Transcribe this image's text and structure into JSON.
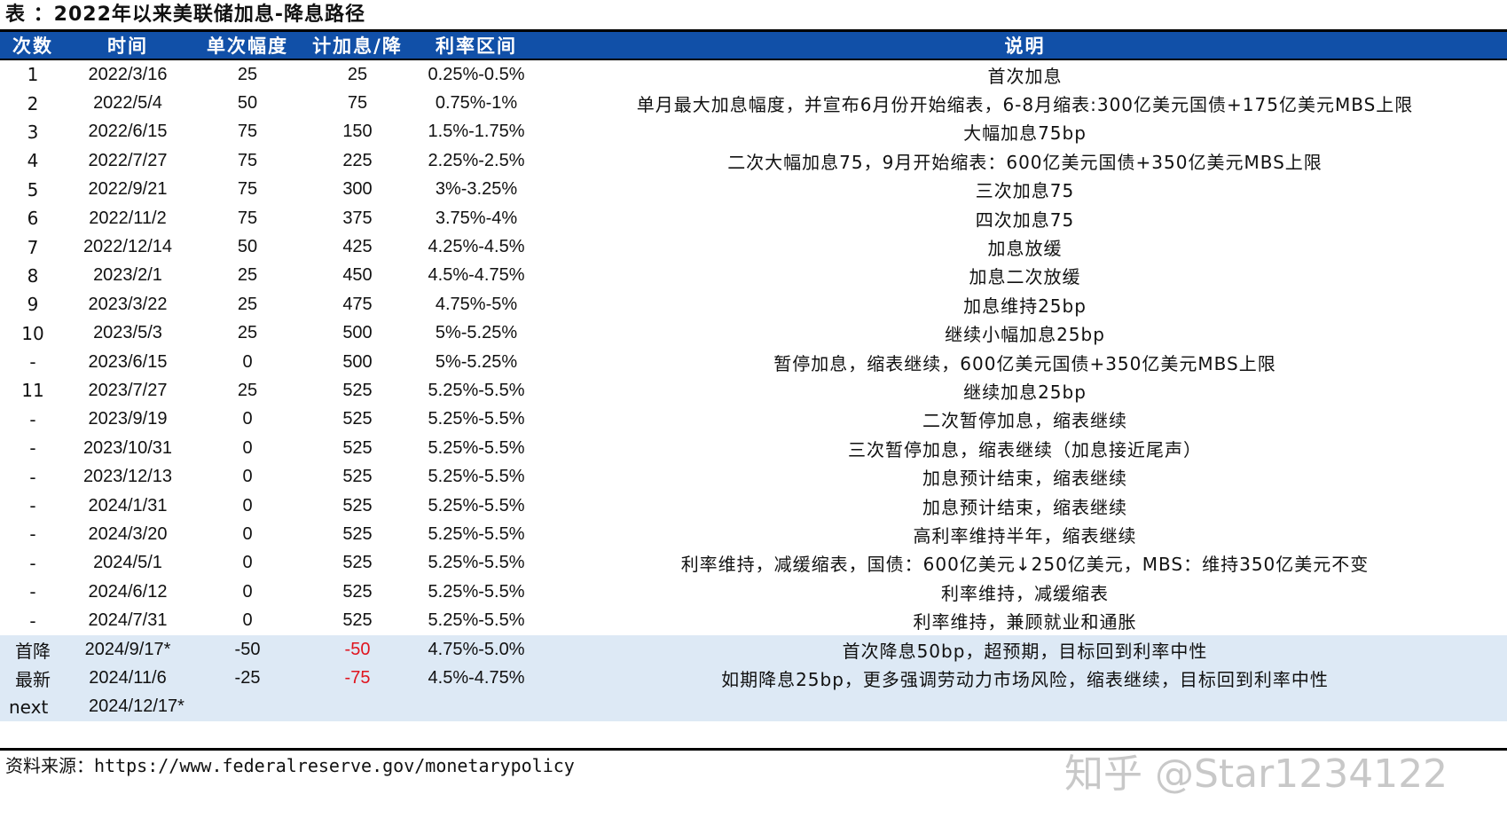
{
  "title": "表 ：2022年以来美联储加息-降息路径",
  "table": {
    "headers": [
      "次数",
      "时间",
      "单次幅度",
      "计加息/降",
      "利率区间",
      "说明"
    ],
    "rows": [
      {
        "no": "1",
        "date": "2022/3/16",
        "step": "25",
        "cum": "25",
        "range": "0.25%-0.5%",
        "desc": "首次加息",
        "highlight": false,
        "cum_red": false
      },
      {
        "no": "2",
        "date": "2022/5/4",
        "step": "50",
        "cum": "75",
        "range": "0.75%-1%",
        "desc": "单月最大加息幅度，并宣布6月份开始缩表，6-8月缩表:300亿美元国债+175亿美元MBS上限",
        "highlight": false,
        "cum_red": false
      },
      {
        "no": "3",
        "date": "2022/6/15",
        "step": "75",
        "cum": "150",
        "range": "1.5%-1.75%",
        "desc": "大幅加息75bp",
        "highlight": false,
        "cum_red": false
      },
      {
        "no": "4",
        "date": "2022/7/27",
        "step": "75",
        "cum": "225",
        "range": "2.25%-2.5%",
        "desc": "二次大幅加息75，9月开始缩表：600亿美元国债+350亿美元MBS上限",
        "highlight": false,
        "cum_red": false
      },
      {
        "no": "5",
        "date": "2022/9/21",
        "step": "75",
        "cum": "300",
        "range": "3%-3.25%",
        "desc": "三次加息75",
        "highlight": false,
        "cum_red": false
      },
      {
        "no": "6",
        "date": "2022/11/2",
        "step": "75",
        "cum": "375",
        "range": "3.75%-4%",
        "desc": "四次加息75",
        "highlight": false,
        "cum_red": false
      },
      {
        "no": "7",
        "date": "2022/12/14",
        "step": "50",
        "cum": "425",
        "range": "4.25%-4.5%",
        "desc": "加息放缓",
        "highlight": false,
        "cum_red": false
      },
      {
        "no": "8",
        "date": "2023/2/1",
        "step": "25",
        "cum": "450",
        "range": "4.5%-4.75%",
        "desc": "加息二次放缓",
        "highlight": false,
        "cum_red": false
      },
      {
        "no": "9",
        "date": "2023/3/22",
        "step": "25",
        "cum": "475",
        "range": "4.75%-5%",
        "desc": "加息维持25bp",
        "highlight": false,
        "cum_red": false
      },
      {
        "no": "10",
        "date": "2023/5/3",
        "step": "25",
        "cum": "500",
        "range": "5%-5.25%",
        "desc": "继续小幅加息25bp",
        "highlight": false,
        "cum_red": false
      },
      {
        "no": "-",
        "date": "2023/6/15",
        "step": "0",
        "cum": "500",
        "range": "5%-5.25%",
        "desc": "暂停加息，缩表继续，600亿美元国债+350亿美元MBS上限",
        "highlight": false,
        "cum_red": false
      },
      {
        "no": "11",
        "date": "2023/7/27",
        "step": "25",
        "cum": "525",
        "range": "5.25%-5.5%",
        "desc": "继续加息25bp",
        "highlight": false,
        "cum_red": false
      },
      {
        "no": "-",
        "date": "2023/9/19",
        "step": "0",
        "cum": "525",
        "range": "5.25%-5.5%",
        "desc": "二次暂停加息，缩表继续",
        "highlight": false,
        "cum_red": false
      },
      {
        "no": "-",
        "date": "2023/10/31",
        "step": "0",
        "cum": "525",
        "range": "5.25%-5.5%",
        "desc": "三次暂停加息，缩表继续（加息接近尾声）",
        "highlight": false,
        "cum_red": false
      },
      {
        "no": "-",
        "date": "2023/12/13",
        "step": "0",
        "cum": "525",
        "range": "5.25%-5.5%",
        "desc": "加息预计结束，缩表继续",
        "highlight": false,
        "cum_red": false
      },
      {
        "no": "-",
        "date": "2024/1/31",
        "step": "0",
        "cum": "525",
        "range": "5.25%-5.5%",
        "desc": "加息预计结束，缩表继续",
        "highlight": false,
        "cum_red": false
      },
      {
        "no": "-",
        "date": "2024/3/20",
        "step": "0",
        "cum": "525",
        "range": "5.25%-5.5%",
        "desc": "高利率维持半年，缩表继续",
        "highlight": false,
        "cum_red": false
      },
      {
        "no": "-",
        "date": "2024/5/1",
        "step": "0",
        "cum": "525",
        "range": "5.25%-5.5%",
        "desc": "利率维持，减缓缩表，国债：600亿美元↓250亿美元，MBS：维持350亿美元不变",
        "highlight": false,
        "cum_red": false
      },
      {
        "no": "-",
        "date": "2024/6/12",
        "step": "0",
        "cum": "525",
        "range": "5.25%-5.5%",
        "desc": "利率维持，减缓缩表",
        "highlight": false,
        "cum_red": false
      },
      {
        "no": "-",
        "date": "2024/7/31",
        "step": "0",
        "cum": "525",
        "range": "5.25%-5.5%",
        "desc": "利率维持，兼顾就业和通胀",
        "highlight": false,
        "cum_red": false
      },
      {
        "no": "首降",
        "date": "2024/9/17*",
        "step": "-50",
        "cum": "-50",
        "range": "4.75%-5.0%",
        "desc": "首次降息50bp，超预期，目标回到利率中性",
        "highlight": true,
        "cum_red": true
      },
      {
        "no": "最新",
        "date": "2024/11/6",
        "step": "-25",
        "cum": "-75",
        "range": "4.5%-4.75%",
        "desc": "如期降息25bp，更多强调劳动力市场风险，缩表继续，目标回到利率中性",
        "highlight": true,
        "cum_red": true
      },
      {
        "no": "next",
        "date": "2024/12/17*",
        "step": "",
        "cum": "",
        "range": "",
        "desc": "",
        "highlight": true,
        "cum_red": false
      }
    ]
  },
  "source": {
    "label": "资料来源：",
    "url": "https://www.federalreserve.gov/monetarypolicy"
  },
  "watermark": "知乎 @Star1234122",
  "colors": {
    "header_bg": "#1150a8",
    "highlight_bg": "#dde9f5",
    "negative_cum": "#e0141e"
  }
}
